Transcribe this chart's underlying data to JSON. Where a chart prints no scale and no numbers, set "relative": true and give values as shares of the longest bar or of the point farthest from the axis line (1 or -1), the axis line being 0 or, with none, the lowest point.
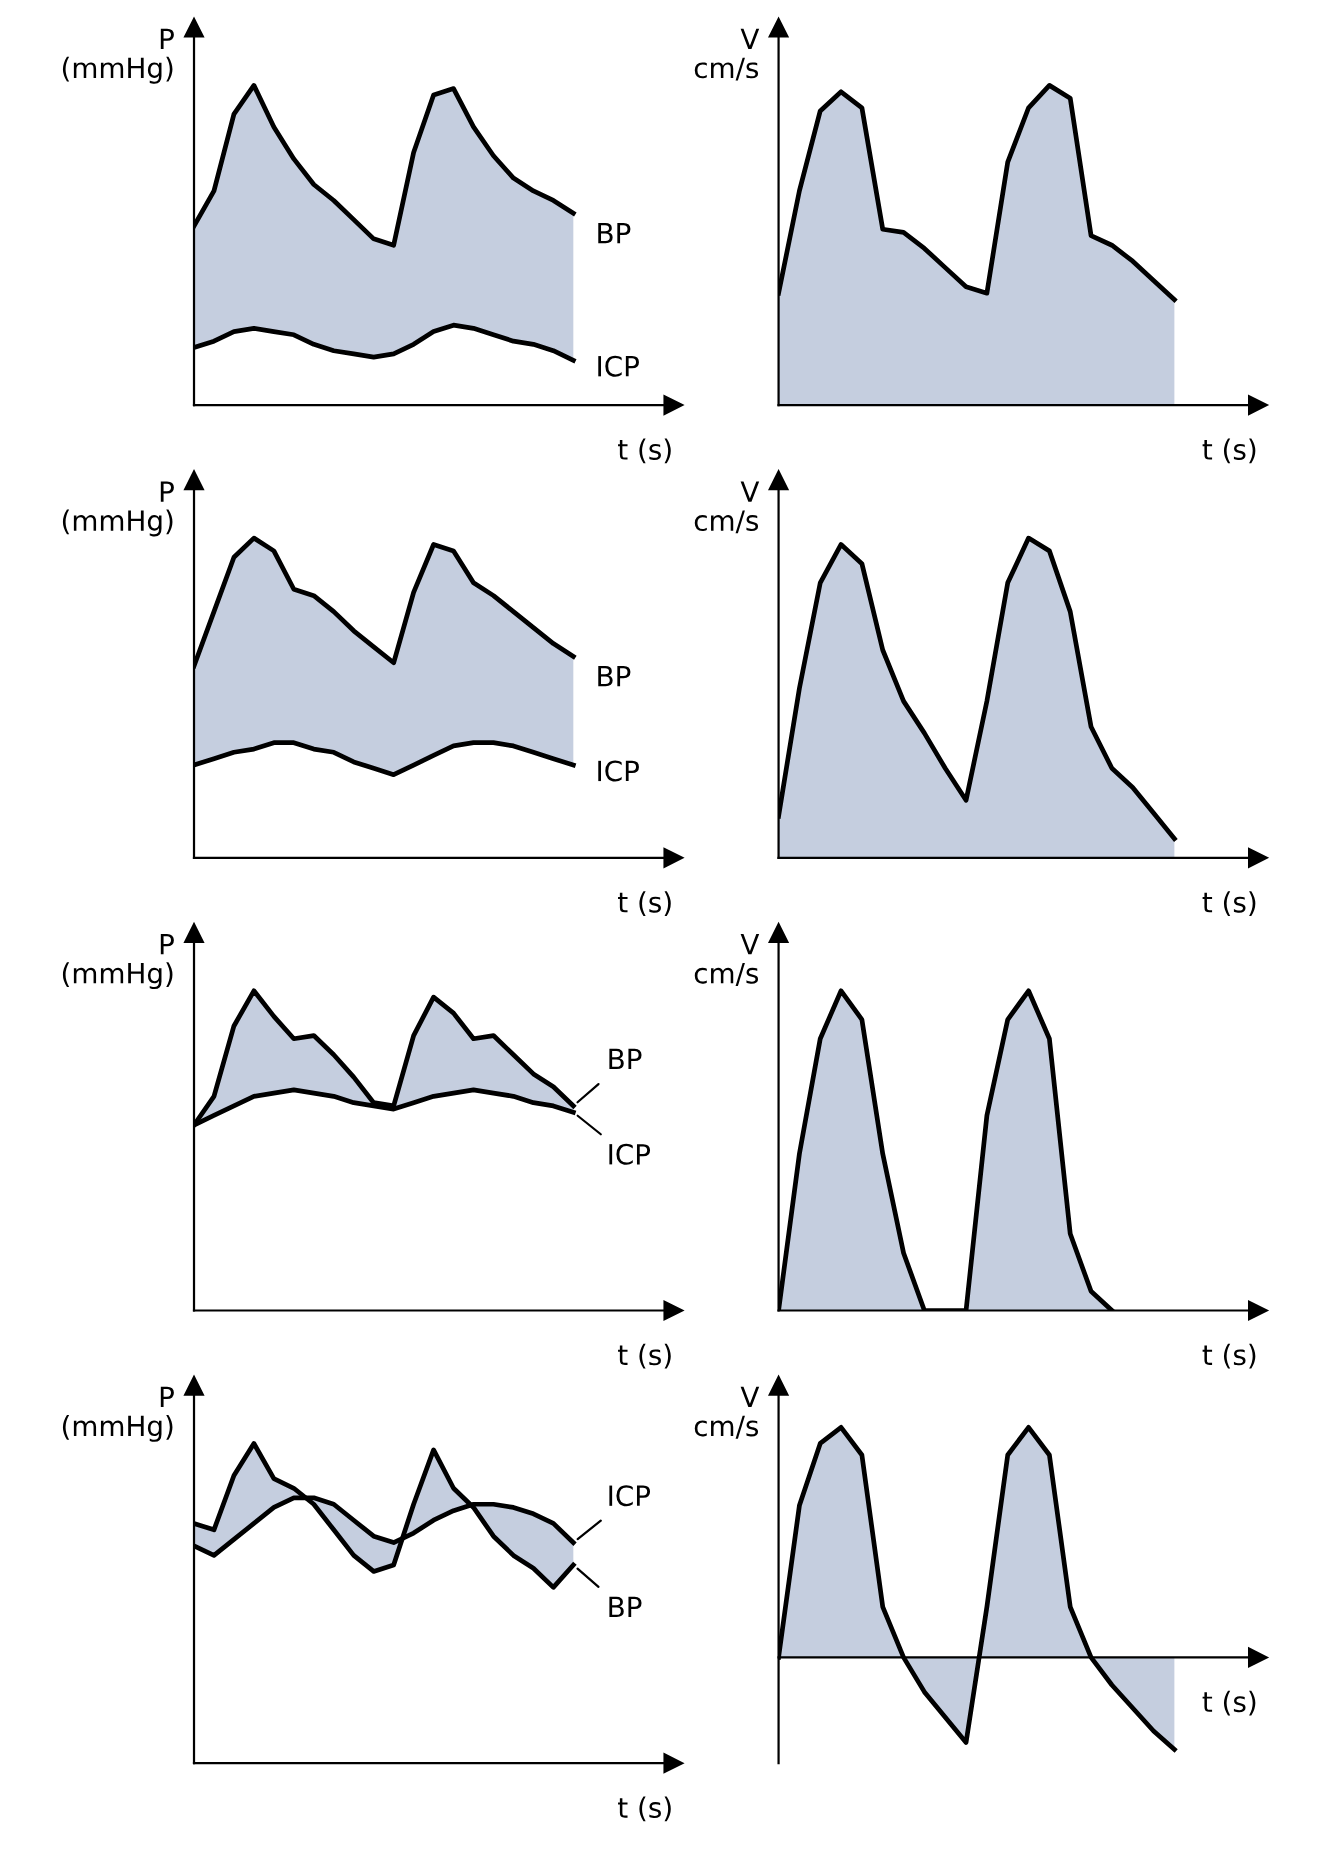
{
  "chart_data": [
    {
      "type": "line",
      "relative": true,
      "tick_labels": false,
      "ylabel": "P\n(mmHg)",
      "xlabel": "t (s)",
      "categories": [
        null,
        null,
        null,
        null,
        null,
        null,
        null,
        null,
        null,
        null,
        null,
        null,
        null,
        null,
        null,
        null,
        null,
        null,
        null,
        null,
        null,
        null,
        null,
        null,
        null
      ],
      "series": [
        {
          "name": "BP",
          "color": "#000000",
          "values": [
            0.56,
            0.67,
            0.91,
            1.0,
            0.87,
            0.77,
            0.69,
            0.64,
            0.58,
            0.52,
            0.5,
            0.79,
            0.97,
            0.99,
            0.87,
            0.78,
            0.71,
            0.67,
            0.64,
            0.6,
            null,
            null,
            null,
            null,
            null
          ],
          "upper": [
            0.56,
            0.67,
            0.91,
            1.0,
            0.87,
            0.77,
            0.69,
            0.64,
            0.58,
            0.52,
            0.5,
            0.79,
            0.97,
            0.99,
            0.87,
            0.78,
            0.71,
            0.67,
            0.64,
            0.6,
            null,
            null,
            null,
            null,
            null
          ],
          "lower": [
            0.18,
            0.2,
            0.23,
            0.24,
            0.23,
            0.22,
            0.19,
            0.17,
            0.16,
            0.15,
            0.16,
            0.19,
            0.23,
            0.25,
            0.24,
            0.22,
            0.2,
            0.19,
            0.17,
            0.14,
            null,
            null,
            null,
            null,
            null
          ]
        },
        {
          "name": "ICP",
          "color": "#000000",
          "values": [
            0.18,
            0.2,
            0.23,
            0.24,
            0.23,
            0.22,
            0.19,
            0.17,
            0.16,
            0.15,
            0.16,
            0.19,
            0.23,
            0.25,
            0.24,
            0.22,
            0.2,
            0.19,
            0.17,
            0.14,
            null,
            null,
            null,
            null,
            null
          ]
        }
      ]
    },
    {
      "type": "area",
      "relative": true,
      "tick_labels": false,
      "ylabel": "V\ncm/s",
      "xlabel": "t (s)",
      "categories": [
        null,
        null,
        null,
        null,
        null,
        null,
        null,
        null,
        null,
        null,
        null,
        null,
        null,
        null,
        null,
        null,
        null,
        null,
        null,
        null,
        null,
        null,
        null,
        null
      ],
      "series": [
        {
          "color": "#c5cedf",
          "values": [
            0.35,
            0.67,
            0.92,
            0.98,
            0.93,
            0.55,
            0.54,
            0.49,
            0.43,
            0.37,
            0.35,
            0.76,
            0.93,
            1.0,
            0.96,
            0.53,
            0.5,
            0.45,
            0.39,
            0.33,
            null,
            null,
            null,
            null
          ]
        }
      ]
    },
    {
      "type": "line",
      "relative": true,
      "tick_labels": false,
      "ylabel": "P\n(mmHg)",
      "xlabel": "t (s)",
      "categories": [
        null,
        null,
        null,
        null,
        null,
        null,
        null,
        null,
        null,
        null,
        null,
        null,
        null,
        null,
        null,
        null,
        null,
        null,
        null,
        null,
        null,
        null,
        null,
        null,
        null
      ],
      "series": [
        {
          "name": "BP",
          "color": "#000000",
          "values": [
            0.6,
            0.77,
            0.94,
            1.0,
            0.96,
            0.84,
            0.82,
            0.77,
            0.71,
            0.66,
            0.61,
            0.83,
            0.98,
            0.96,
            0.86,
            0.82,
            0.77,
            0.72,
            0.67,
            0.63,
            null,
            null,
            null,
            null,
            null
          ],
          "upper": [
            0.6,
            0.77,
            0.94,
            1.0,
            0.96,
            0.84,
            0.82,
            0.77,
            0.71,
            0.66,
            0.61,
            0.83,
            0.98,
            0.96,
            0.86,
            0.82,
            0.77,
            0.72,
            0.67,
            0.63,
            null,
            null,
            null,
            null,
            null
          ],
          "lower": [
            0.29,
            0.31,
            0.33,
            0.34,
            0.36,
            0.36,
            0.34,
            0.33,
            0.3,
            0.28,
            0.26,
            0.29,
            0.32,
            0.35,
            0.36,
            0.36,
            0.35,
            0.33,
            0.31,
            0.29,
            null,
            null,
            null,
            null,
            null
          ]
        },
        {
          "name": "ICP",
          "color": "#000000",
          "values": [
            0.29,
            0.31,
            0.33,
            0.34,
            0.36,
            0.36,
            0.34,
            0.33,
            0.3,
            0.28,
            0.26,
            0.29,
            0.32,
            0.35,
            0.36,
            0.36,
            0.35,
            0.33,
            0.31,
            0.29,
            null,
            null,
            null,
            null,
            null
          ]
        }
      ]
    },
    {
      "type": "area",
      "relative": true,
      "tick_labels": false,
      "ylabel": "V\ncm/s",
      "xlabel": "t (s)",
      "categories": [
        null,
        null,
        null,
        null,
        null,
        null,
        null,
        null,
        null,
        null,
        null,
        null,
        null,
        null,
        null,
        null,
        null,
        null,
        null,
        null,
        null,
        null,
        null,
        null
      ],
      "series": [
        {
          "color": "#c5cedf",
          "values": [
            0.13,
            0.53,
            0.86,
            0.98,
            0.92,
            0.65,
            0.49,
            0.39,
            0.28,
            0.18,
            0.49,
            0.86,
            1.0,
            0.96,
            0.77,
            0.41,
            0.28,
            0.22,
            0.14,
            0.06,
            null,
            null,
            null,
            null
          ]
        }
      ]
    },
    {
      "type": "line",
      "relative": true,
      "tick_labels": false,
      "ylabel": "P\n(mmHg)",
      "xlabel": "t (s)",
      "categories": [
        null,
        null,
        null,
        null,
        null,
        null,
        null,
        null,
        null,
        null,
        null,
        null,
        null,
        null,
        null,
        null,
        null,
        null,
        null,
        null,
        null,
        null,
        null,
        null,
        null
      ],
      "series": [
        {
          "name": "BP",
          "color": "#000000",
          "values": [
            0.58,
            0.67,
            0.89,
            1.0,
            0.92,
            0.85,
            0.86,
            0.8,
            0.73,
            0.65,
            0.64,
            0.86,
            0.98,
            0.93,
            0.85,
            0.86,
            0.8,
            0.74,
            0.7,
            0.64,
            null,
            null,
            null,
            null,
            null
          ],
          "upper": [
            0.58,
            0.67,
            0.89,
            1.0,
            0.92,
            0.85,
            0.86,
            0.8,
            0.73,
            0.65,
            0.64,
            0.86,
            0.98,
            0.93,
            0.85,
            0.86,
            0.8,
            0.74,
            0.7,
            0.64,
            null,
            null,
            null,
            null,
            null
          ],
          "lower": [
            0.58,
            0.61,
            0.64,
            0.67,
            0.68,
            0.69,
            0.68,
            0.67,
            0.65,
            0.64,
            0.63,
            0.65,
            0.67,
            0.68,
            0.69,
            0.68,
            0.67,
            0.65,
            0.64,
            0.62,
            null,
            null,
            null,
            null,
            null
          ]
        },
        {
          "name": "ICP",
          "color": "#000000",
          "values": [
            0.58,
            0.61,
            0.64,
            0.67,
            0.68,
            0.69,
            0.68,
            0.67,
            0.65,
            0.64,
            0.63,
            0.65,
            0.67,
            0.68,
            0.69,
            0.68,
            0.67,
            0.65,
            0.64,
            0.62,
            null,
            null,
            null,
            null,
            null
          ]
        }
      ]
    },
    {
      "type": "area",
      "relative": true,
      "tick_labels": false,
      "ylabel": "V\ncm/s",
      "xlabel": "t (s)",
      "categories": [
        null,
        null,
        null,
        null,
        null,
        null,
        null,
        null,
        null,
        null,
        null,
        null,
        null,
        null,
        null,
        null,
        null,
        null,
        null,
        null,
        null,
        null,
        null,
        null
      ],
      "series": [
        {
          "color": "#c5cedf",
          "values": [
            0,
            0.49,
            0.85,
            1.0,
            0.91,
            0.49,
            0.18,
            0,
            0,
            0,
            0.61,
            0.91,
            1.0,
            0.85,
            0.24,
            0.06,
            0,
            null,
            null,
            null,
            null,
            null,
            null,
            null
          ]
        }
      ]
    },
    {
      "type": "line",
      "relative": true,
      "tick_labels": false,
      "ylabel": "P\n(mmHg)",
      "xlabel": "t (s)",
      "categories": [
        null,
        null,
        null,
        null,
        null,
        null,
        null,
        null,
        null,
        null,
        null,
        null,
        null,
        null,
        null,
        null,
        null,
        null,
        null,
        null,
        null,
        null,
        null,
        null,
        null
      ],
      "series": [
        {
          "name": "BP",
          "color": "#000000",
          "values": [
            0.75,
            0.73,
            0.9,
            1.0,
            0.89,
            0.86,
            0.81,
            0.73,
            0.65,
            0.6,
            0.62,
            0.81,
            0.98,
            0.86,
            0.8,
            0.71,
            0.65,
            0.61,
            0.55,
            0.62,
            null,
            null,
            null,
            null,
            null
          ],
          "upper": [
            0.75,
            0.73,
            0.9,
            1.0,
            0.89,
            0.86,
            0.81,
            0.73,
            0.65,
            0.6,
            0.62,
            0.81,
            0.98,
            0.86,
            0.8,
            0.71,
            0.65,
            0.61,
            0.55,
            0.62,
            null,
            null,
            null,
            null,
            null
          ],
          "lower": [
            0.68,
            0.65,
            0.7,
            0.75,
            0.8,
            0.83,
            0.83,
            0.81,
            0.76,
            0.71,
            0.69,
            0.72,
            0.76,
            0.79,
            0.81,
            0.81,
            0.8,
            0.78,
            0.75,
            0.69,
            null,
            null,
            null,
            null,
            null
          ]
        },
        {
          "name": "ICP",
          "color": "#000000",
          "values": [
            0.68,
            0.65,
            0.7,
            0.75,
            0.8,
            0.83,
            0.83,
            0.81,
            0.76,
            0.71,
            0.69,
            0.72,
            0.76,
            0.79,
            0.81,
            0.81,
            0.8,
            0.78,
            0.75,
            0.69,
            null,
            null,
            null,
            null,
            null
          ]
        }
      ]
    },
    {
      "type": "area",
      "relative": true,
      "tick_labels": false,
      "ylabel": "V\ncm/s",
      "xlabel": "t (s)",
      "categories": [
        null,
        null,
        null,
        null,
        null,
        null,
        null,
        null,
        null,
        null,
        null,
        null,
        null,
        null,
        null,
        null,
        null,
        null,
        null,
        null,
        null,
        null,
        null,
        null
      ],
      "series": [
        {
          "color": "#c5cedf",
          "values": [
            0,
            0.66,
            0.93,
            1.0,
            0.88,
            0.22,
            0,
            -0.15,
            -0.26,
            -0.37,
            0.22,
            0.88,
            1.0,
            0.88,
            0.22,
            0,
            -0.12,
            -0.22,
            -0.32,
            -0.4,
            null,
            null,
            null,
            null
          ]
        }
      ]
    }
  ]
}
